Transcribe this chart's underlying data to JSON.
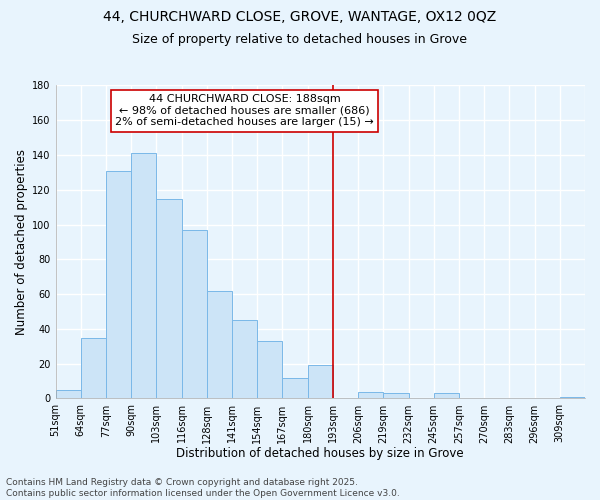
{
  "title": "44, CHURCHWARD CLOSE, GROVE, WANTAGE, OX12 0QZ",
  "subtitle": "Size of property relative to detached houses in Grove",
  "xlabel": "Distribution of detached houses by size in Grove",
  "ylabel": "Number of detached properties",
  "bar_color": "#cce4f7",
  "bar_edge_color": "#7ab8e8",
  "bin_labels": [
    "51sqm",
    "64sqm",
    "77sqm",
    "90sqm",
    "103sqm",
    "116sqm",
    "128sqm",
    "141sqm",
    "154sqm",
    "167sqm",
    "180sqm",
    "193sqm",
    "206sqm",
    "219sqm",
    "232sqm",
    "245sqm",
    "257sqm",
    "270sqm",
    "283sqm",
    "296sqm",
    "309sqm"
  ],
  "bar_heights": [
    5,
    35,
    131,
    141,
    115,
    97,
    62,
    45,
    33,
    12,
    19,
    0,
    4,
    3,
    0,
    3,
    0,
    0,
    0,
    0,
    1
  ],
  "vline_x": 11.0,
  "vline_color": "#cc0000",
  "annotation_line1": "44 CHURCHWARD CLOSE: 188sqm",
  "annotation_line2": "← 98% of detached houses are smaller (686)",
  "annotation_line3": "2% of semi-detached houses are larger (15) →",
  "annotation_box_color": "#ffffff",
  "annotation_box_edge": "#cc0000",
  "ylim": [
    0,
    180
  ],
  "yticks": [
    0,
    20,
    40,
    60,
    80,
    100,
    120,
    140,
    160,
    180
  ],
  "footer_line1": "Contains HM Land Registry data © Crown copyright and database right 2025.",
  "footer_line2": "Contains public sector information licensed under the Open Government Licence v3.0.",
  "background_color": "#e8f4fd",
  "grid_color": "#ffffff",
  "title_fontsize": 10,
  "subtitle_fontsize": 9,
  "axis_label_fontsize": 8.5,
  "tick_fontsize": 7,
  "annotation_fontsize": 8,
  "footer_fontsize": 6.5
}
